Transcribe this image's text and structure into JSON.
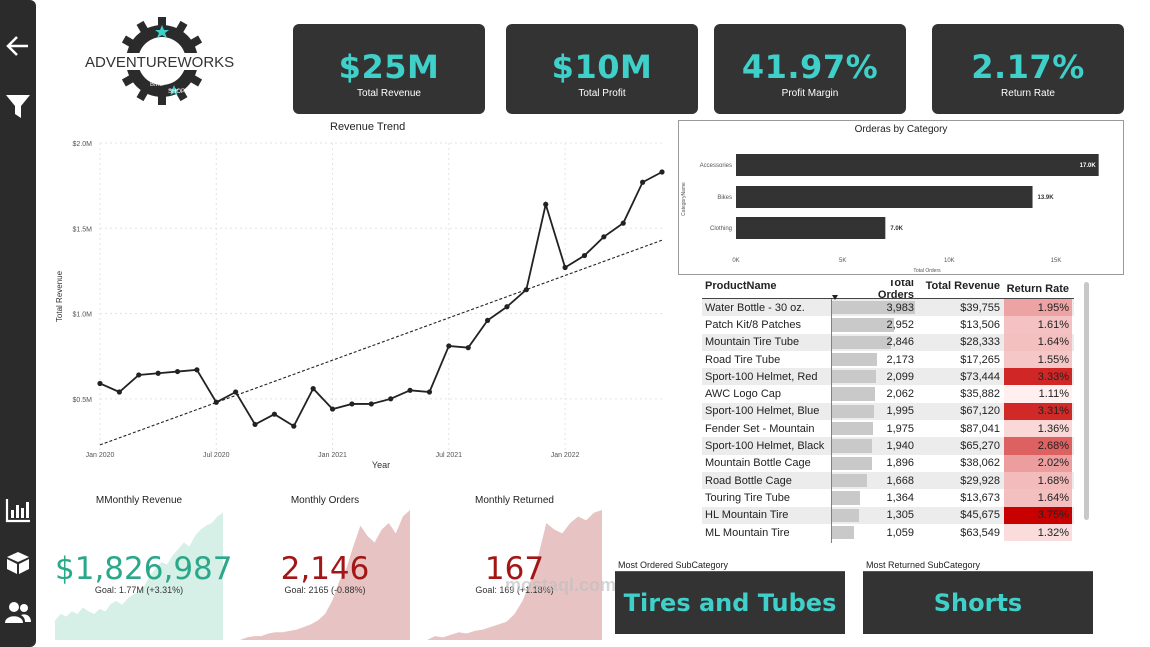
{
  "logo": {
    "brand": "ADVENTUREWORKS",
    "sub1": "BIKE",
    "sub2": "SHOP"
  },
  "sidebar": {
    "icons": [
      "back-arrow-icon",
      "filter-icon",
      "bar-chart-icon",
      "box-icon",
      "users-icon"
    ]
  },
  "kpis": [
    {
      "value": "$25M",
      "label": "Total Revenue"
    },
    {
      "value": "$10M",
      "label": "Total Profit"
    },
    {
      "value": "41.97%",
      "label": "Profit Margin"
    },
    {
      "value": "2.17%",
      "label": "Return Rate"
    }
  ],
  "trend": {
    "title": "Revenue Trend",
    "xlabel": "Year",
    "ylabel": "Total Revenue",
    "yticks": [
      "$2.0M",
      "$1.5M",
      "$1.0M",
      "$0.5M"
    ],
    "xticks": [
      "Jan 2020",
      "Jul 2020",
      "Jan 2021",
      "Jul 2021",
      "Jan 2022"
    ]
  },
  "category": {
    "title": "Orderas by Category",
    "ylabel": "CategoryName",
    "xlabel": "Total Orders",
    "xticks": [
      "0K",
      "5K",
      "10K",
      "15K"
    ]
  },
  "table": {
    "headers": [
      "ProductName",
      "Total Orders",
      "Total Revenue",
      "Return Rate"
    ],
    "rows": [
      [
        "Water Bottle - 30 oz.",
        "3,983",
        "$39,755",
        "1.95%"
      ],
      [
        "Patch Kit/8 Patches",
        "2,952",
        "$13,506",
        "1.61%"
      ],
      [
        "Mountain Tire Tube",
        "2,846",
        "$28,333",
        "1.64%"
      ],
      [
        "Road Tire Tube",
        "2,173",
        "$17,265",
        "1.55%"
      ],
      [
        "Sport-100 Helmet, Red",
        "2,099",
        "$73,444",
        "3.33%"
      ],
      [
        "AWC Logo Cap",
        "2,062",
        "$35,882",
        "1.11%"
      ],
      [
        "Sport-100 Helmet, Blue",
        "1,995",
        "$67,120",
        "3.31%"
      ],
      [
        "Fender Set - Mountain",
        "1,975",
        "$87,041",
        "1.36%"
      ],
      [
        "Sport-100 Helmet, Black",
        "1,940",
        "$65,270",
        "2.68%"
      ],
      [
        "Mountain Bottle Cage",
        "1,896",
        "$38,062",
        "2.02%"
      ],
      [
        "Road Bottle Cage",
        "1,668",
        "$29,928",
        "1.68%"
      ],
      [
        "Touring Tire Tube",
        "1,364",
        "$13,673",
        "1.64%"
      ],
      [
        "HL Mountain Tire",
        "1,305",
        "$45,675",
        "3.75%"
      ],
      [
        "ML Mountain Tire",
        "1,059",
        "$63,549",
        "1.32%"
      ]
    ]
  },
  "minis": [
    {
      "title": "MMonthly Revenue",
      "value": "$1,826,987",
      "goal": "Goal: 1.77M (+3.31%)",
      "color": "#2aa889",
      "area": "#d6efe7"
    },
    {
      "title": "Monthly Orders",
      "value": "2,146",
      "goal": "Goal: 2165 (-0.88%)",
      "color": "#a31616",
      "area": "#e8c3c3"
    },
    {
      "title": "Monthly Returned",
      "value": "167",
      "goal": "Goal: 169 (+1.18%)",
      "color": "#a31616",
      "area": "#e8c3c3"
    }
  ],
  "subs": [
    {
      "title": "Most Ordered SubCategory",
      "value": "Tires and Tubes"
    },
    {
      "title": "Most Returned SubCategory",
      "value": "Shorts"
    }
  ],
  "watermark": {
    "text": "mostaql.com"
  },
  "chart_data": [
    {
      "type": "line",
      "title": "Revenue Trend",
      "xlabel": "Year",
      "ylabel": "Total Revenue",
      "ylim": [
        0.2,
        2.0
      ],
      "x": [
        "2020-01",
        "2020-02",
        "2020-03",
        "2020-04",
        "2020-05",
        "2020-06",
        "2020-07",
        "2020-08",
        "2020-09",
        "2020-10",
        "2020-11",
        "2020-12",
        "2021-01",
        "2021-02",
        "2021-03",
        "2021-04",
        "2021-05",
        "2021-06",
        "2021-07",
        "2021-08",
        "2021-09",
        "2021-10",
        "2021-11",
        "2021-12",
        "2022-01",
        "2022-02",
        "2022-03",
        "2022-04",
        "2022-05",
        "2022-06"
      ],
      "series": [
        {
          "values": [
            0.59,
            0.54,
            0.64,
            0.65,
            0.66,
            0.67,
            0.48,
            0.54,
            0.35,
            0.41,
            0.34,
            0.56,
            0.44,
            0.47,
            0.47,
            0.5,
            0.55,
            0.54,
            0.81,
            0.8,
            0.96,
            1.04,
            1.14,
            1.64,
            1.27,
            1.34,
            1.45,
            1.53,
            1.77,
            1.83
          ]
        }
      ],
      "trendline": {
        "start": 0.23,
        "end": 1.43
      }
    },
    {
      "type": "bar",
      "title": "Orderas by Category",
      "orientation": "horizontal",
      "xlabel": "Total Orders",
      "ylabel": "CategoryName",
      "categories": [
        "Accessories",
        "Bikes",
        "Clothing"
      ],
      "values": [
        17000,
        13900,
        7000
      ],
      "data_labels": [
        "17.0K",
        "13.9K",
        "7.0K"
      ],
      "xlim": [
        0,
        17000
      ]
    },
    {
      "type": "area",
      "title": "MMonthly Revenue",
      "values": [
        0.15,
        0.2,
        0.18,
        0.22,
        0.2,
        0.25,
        0.22,
        0.2,
        0.24,
        0.22,
        0.28,
        0.3,
        0.27,
        0.32,
        0.35,
        0.38,
        0.42,
        0.5,
        0.55,
        0.6,
        0.58,
        0.65,
        0.7,
        0.75,
        0.72,
        0.8,
        0.85,
        0.88,
        0.9,
        0.95,
        0.98
      ]
    },
    {
      "type": "area",
      "title": "Monthly Orders",
      "values": [
        0.0,
        0.02,
        0.03,
        0.03,
        0.05,
        0.06,
        0.06,
        0.07,
        0.08,
        0.1,
        0.12,
        0.15,
        0.2,
        0.3,
        0.45,
        0.55,
        0.72,
        0.88,
        0.8,
        0.75,
        0.85,
        0.9,
        0.82,
        0.95,
        1.0
      ]
    },
    {
      "type": "area",
      "title": "Monthly Returned",
      "values": [
        0.0,
        0.03,
        0.02,
        0.04,
        0.06,
        0.05,
        0.07,
        0.08,
        0.1,
        0.12,
        0.14,
        0.2,
        0.3,
        0.45,
        0.65,
        0.9,
        0.85,
        0.82,
        0.9,
        0.95,
        0.92,
        0.98,
        1.0
      ]
    }
  ]
}
